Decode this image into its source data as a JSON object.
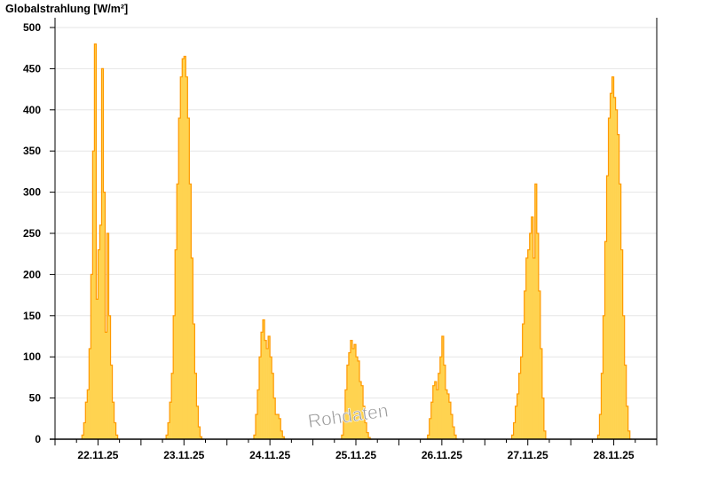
{
  "chart_data": {
    "type": "area",
    "title": "Globalstrahlung [W/m²]",
    "ylabel": "",
    "xlabel": "",
    "ylim": [
      0,
      500
    ],
    "yticks": [
      0,
      50,
      100,
      150,
      200,
      250,
      300,
      350,
      400,
      450,
      500
    ],
    "grid": true,
    "x_categories": [
      "22.11.25",
      "23.11.25",
      "24.11.25",
      "25.11.25",
      "26.11.25",
      "27.11.25",
      "28.11.25"
    ],
    "watermark": "Rohdaten",
    "colors": {
      "fill": "#ffd350",
      "line": "#ff9900",
      "grid": "#e6e6e6",
      "axis": "#000000"
    },
    "step_minutes": 30,
    "days": [
      {
        "date": "22.11.25",
        "start": "07:30",
        "values": [
          5,
          20,
          45,
          60,
          110,
          200,
          350,
          480,
          170,
          230,
          260,
          450,
          300,
          130,
          250,
          150,
          90,
          45,
          20,
          5,
          0
        ]
      },
      {
        "date": "23.11.25",
        "start": "07:00",
        "values": [
          5,
          20,
          45,
          80,
          150,
          230,
          310,
          390,
          440,
          462,
          465,
          440,
          390,
          310,
          220,
          140,
          80,
          40,
          15,
          3,
          0
        ]
      },
      {
        "date": "24.11.25",
        "start": "07:30",
        "values": [
          5,
          30,
          60,
          100,
          130,
          145,
          120,
          110,
          125,
          100,
          80,
          50,
          30,
          30,
          25,
          10,
          3,
          0
        ]
      },
      {
        "date": "25.11.25",
        "start": "08:00",
        "values": [
          5,
          30,
          60,
          90,
          105,
          120,
          110,
          115,
          100,
          95,
          70,
          65,
          40,
          20,
          8,
          2,
          0
        ]
      },
      {
        "date": "26.11.25",
        "start": "08:00",
        "values": [
          5,
          25,
          45,
          65,
          70,
          60,
          80,
          100,
          125,
          90,
          60,
          55,
          45,
          30,
          15,
          5,
          0
        ]
      },
      {
        "date": "27.11.25",
        "start": "07:30",
        "values": [
          5,
          20,
          40,
          55,
          80,
          100,
          140,
          180,
          220,
          230,
          250,
          270,
          220,
          310,
          250,
          180,
          110,
          50,
          10,
          0
        ]
      },
      {
        "date": "28.11.25",
        "start": "07:30",
        "values": [
          5,
          30,
          80,
          150,
          240,
          320,
          390,
          420,
          440,
          415,
          400,
          370,
          310,
          230,
          150,
          90,
          40,
          10,
          0
        ]
      }
    ]
  }
}
